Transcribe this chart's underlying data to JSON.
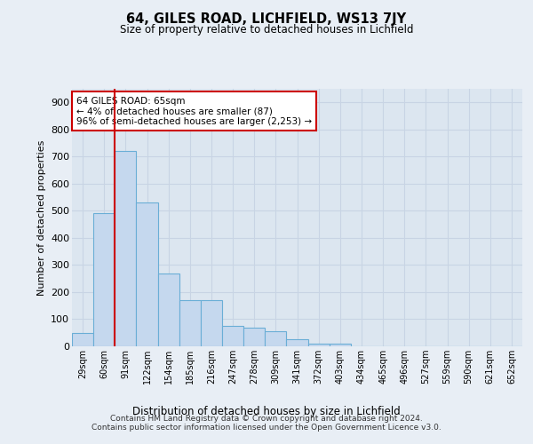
{
  "title": "64, GILES ROAD, LICHFIELD, WS13 7JY",
  "subtitle": "Size of property relative to detached houses in Lichfield",
  "xlabel": "Distribution of detached houses by size in Lichfield",
  "ylabel": "Number of detached properties",
  "categories": [
    "29sqm",
    "60sqm",
    "91sqm",
    "122sqm",
    "154sqm",
    "185sqm",
    "216sqm",
    "247sqm",
    "278sqm",
    "309sqm",
    "341sqm",
    "372sqm",
    "403sqm",
    "434sqm",
    "465sqm",
    "496sqm",
    "527sqm",
    "559sqm",
    "590sqm",
    "621sqm",
    "652sqm"
  ],
  "values": [
    50,
    490,
    720,
    530,
    270,
    170,
    170,
    75,
    70,
    55,
    25,
    10,
    10,
    0,
    0,
    0,
    0,
    0,
    0,
    0,
    0
  ],
  "bar_color": "#c5d8ee",
  "bar_edge_color": "#6aaed6",
  "bg_color": "#e8eef5",
  "plot_bg_color": "#dce6f0",
  "grid_color": "#c8d4e4",
  "vline_color": "#cc0000",
  "vline_x": 1.5,
  "annotation_text": "64 GILES ROAD: 65sqm\n← 4% of detached houses are smaller (87)\n96% of semi-detached houses are larger (2,253) →",
  "annotation_box_color": "#ffffff",
  "annotation_box_edge": "#cc0000",
  "ylim": [
    0,
    950
  ],
  "yticks": [
    0,
    100,
    200,
    300,
    400,
    500,
    600,
    700,
    800,
    900
  ],
  "footer": "Contains HM Land Registry data © Crown copyright and database right 2024.\nContains public sector information licensed under the Open Government Licence v3.0."
}
